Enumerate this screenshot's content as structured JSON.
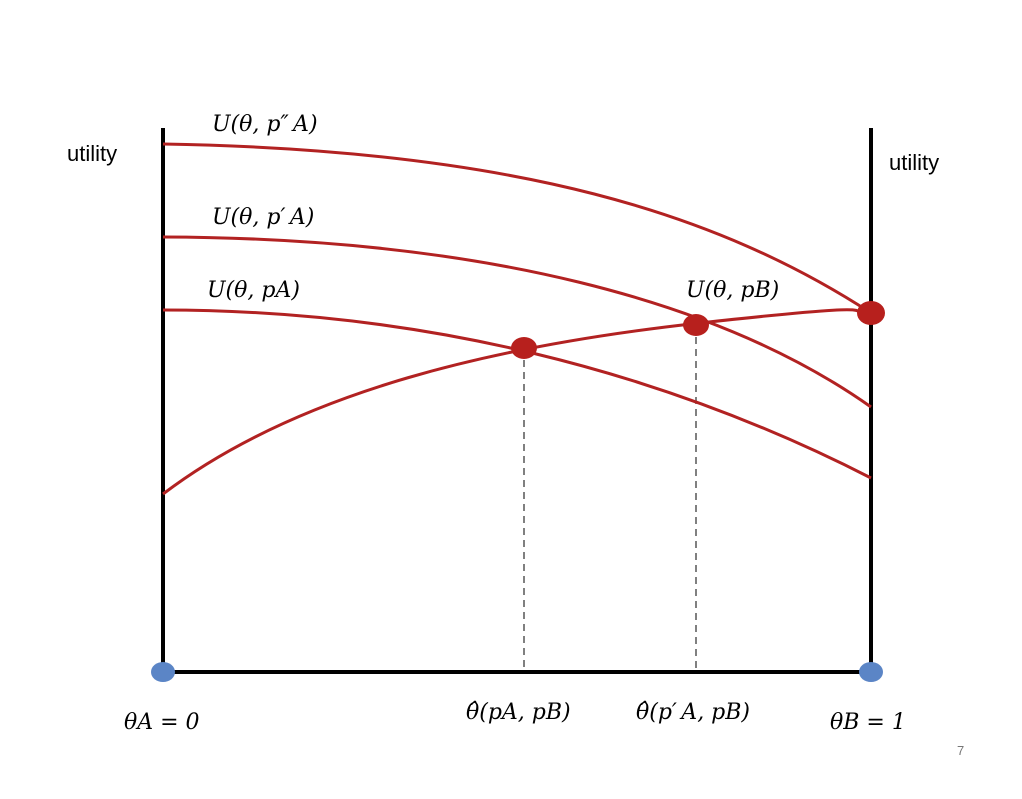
{
  "colors": {
    "axis": "#000000",
    "curve": "#b22222",
    "intersection_dot": "#b7201d",
    "endpoint_dot": "#5b85c6",
    "dashed": "#808080"
  },
  "labels": {
    "utility_left": "utility",
    "utility_right": "utility",
    "curve_pA_double_prime": "U(θ, p″ A)",
    "curve_pA_prime": "U(θ, p′ A)",
    "curve_pA": "U(θ, pA)",
    "curve_pB": "U(θ, pB)",
    "theta_A": "θA = 0",
    "theta_B": "θB = 1",
    "theta_hat_pA_pB": "θ̂(pA, pB)",
    "theta_hat_pA_prime_pB": "θ̂(p′ A, pB)",
    "page_number": "7"
  }
}
